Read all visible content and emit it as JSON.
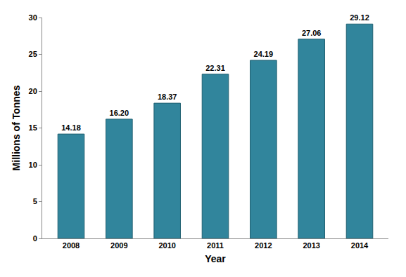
{
  "chart_data": {
    "type": "bar",
    "x_label": "Year",
    "y_label": "Millions of Tonnes",
    "categories": [
      "2008",
      "2009",
      "2010",
      "2011",
      "2012",
      "2013",
      "2014"
    ],
    "values": [
      14.18,
      16.2,
      18.37,
      22.31,
      24.19,
      27.06,
      29.12
    ],
    "value_labels": [
      "14.18",
      "16.20",
      "18.37",
      "22.31",
      "24.19",
      "27.06",
      "29.12"
    ],
    "data_labels": true,
    "color": "#31859c",
    "ylim": [
      0,
      30
    ],
    "yticks": [
      0,
      5,
      10,
      15,
      20,
      25,
      30
    ],
    "grid": false
  }
}
